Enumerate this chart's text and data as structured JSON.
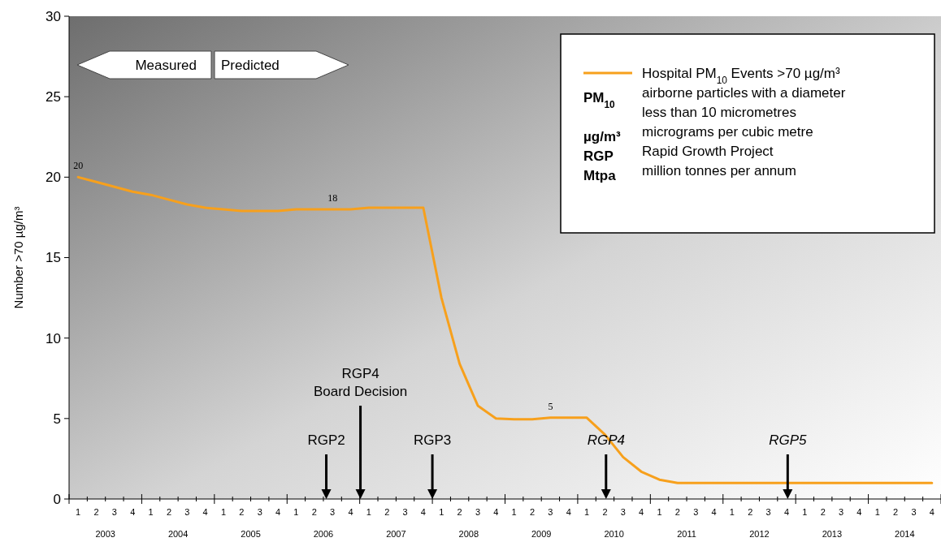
{
  "chart_data": {
    "type": "line",
    "ylabel": "Number >70 µg/m³",
    "ylim": [
      0,
      30
    ],
    "yticks": [
      0,
      5,
      10,
      15,
      20,
      25,
      30
    ],
    "categories": [
      "1",
      "2",
      "3",
      "4",
      "1",
      "2",
      "3",
      "4",
      "1",
      "2",
      "3",
      "4",
      "1",
      "2",
      "3",
      "4",
      "1",
      "2",
      "3",
      "4",
      "1",
      "2",
      "3",
      "4",
      "1",
      "2",
      "3",
      "4",
      "1",
      "2",
      "3",
      "4",
      "1",
      "2",
      "3",
      "4",
      "1",
      "2",
      "3",
      "4",
      "1",
      "2",
      "3",
      "4",
      "1",
      "2",
      "3",
      "4"
    ],
    "legend": "top right",
    "series": [
      {
        "name": "Hospital PM$_{10}$ Events >70 µg/m³",
        "color": "#f7a01c",
        "values": [
          20,
          19.7,
          19.4,
          19.1,
          18.9,
          18.6,
          18.3,
          18.1,
          18,
          17.9,
          17.9,
          17.9,
          18,
          18,
          18,
          18,
          18.1,
          18.1,
          18.1,
          18.1,
          12.5,
          8.4,
          5.8,
          5,
          4.95,
          4.95,
          5.05,
          5.05,
          5.05,
          4,
          2.6,
          1.7,
          1.2,
          1,
          1,
          1,
          1,
          1,
          1,
          1,
          1,
          1,
          1,
          1,
          1,
          1,
          1,
          1
        ],
        "value_labels": [
          "20",
          null,
          null,
          null,
          null,
          null,
          null,
          null,
          null,
          null,
          null,
          null,
          null,
          null,
          "18",
          null,
          null,
          null,
          null,
          null,
          null,
          null,
          null,
          null,
          null,
          null,
          "5",
          null,
          null,
          null,
          null,
          null,
          null,
          null,
          null,
          null,
          null,
          null,
          null,
          null,
          null,
          null,
          null,
          null,
          null,
          null,
          null,
          null
        ]
      }
    ],
    "annotations": [
      "Measured",
      "Predicted",
      "PM$_{10}$",
      "airborne particles with a diameter\nless than 10 micrometres",
      "µg/m³",
      "micrograms per cubic metre",
      "RGP",
      "Rapid Growth Project",
      "Mtpa",
      "million tonnes per annum",
      "RGP2",
      "RGP4\nBoard Decision",
      "RGP3",
      "RGP4",
      "RGP5",
      "2003",
      "2004",
      "2005",
      "2006",
      "2007",
      "2008",
      "2009",
      "2010",
      "2011",
      "2012",
      "2013",
      "2014"
    ]
  }
}
